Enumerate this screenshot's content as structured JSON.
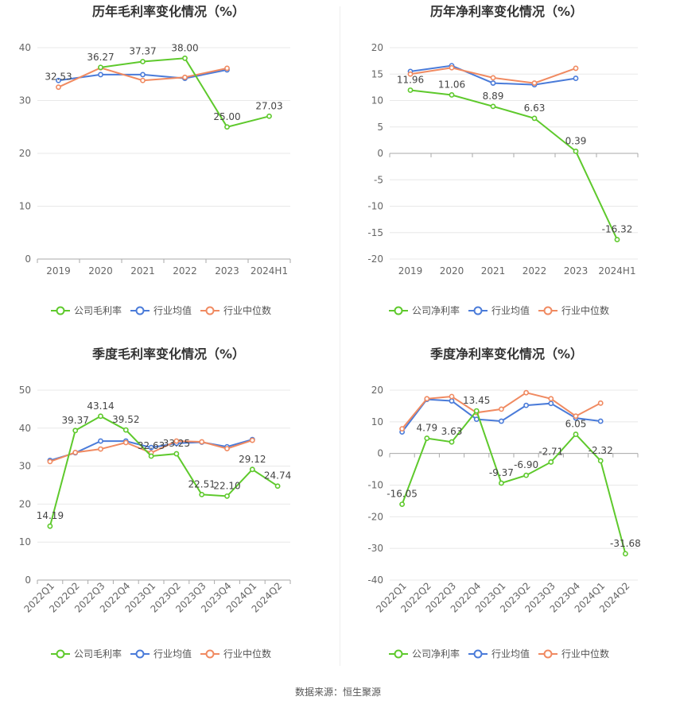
{
  "source_text": "数据来源：恒生聚源",
  "colors": {
    "company": "#5ec92c",
    "industry_avg": "#4a7bd9",
    "industry_median": "#f08a61",
    "grid": "#e8e8e8",
    "axis": "#aaaaaa",
    "text": "#666666",
    "title": "#333333"
  },
  "chart_data": [
    {
      "id": "annual-gross",
      "type": "line",
      "title": "历年毛利率变化情况（%）",
      "categories": [
        "2019",
        "2020",
        "2021",
        "2022",
        "2023",
        "2024H1"
      ],
      "ylim": [
        0,
        40
      ],
      "yticks": [
        0,
        10,
        20,
        30,
        40
      ],
      "grid": true,
      "legend_position": "bottom",
      "series": [
        {
          "name": "公司毛利率",
          "key": "company",
          "values": [
            null,
            36.27,
            37.37,
            38.0,
            25.0,
            27.03
          ],
          "labels": [
            null,
            "36.27",
            "37.37",
            "38.00",
            "25.00",
            "27.03"
          ]
        },
        {
          "name": "行业均值",
          "key": "industry_avg",
          "values": [
            33.8,
            34.9,
            34.9,
            34.2,
            35.8,
            null
          ]
        },
        {
          "name": "行业中位数",
          "key": "industry_median",
          "values": [
            32.53,
            36.2,
            33.8,
            34.4,
            36.1,
            null
          ],
          "labels": [
            "32.53",
            null,
            null,
            null,
            null,
            null
          ]
        }
      ]
    },
    {
      "id": "annual-net",
      "type": "line",
      "title": "历年净利率变化情况（%）",
      "categories": [
        "2019",
        "2020",
        "2021",
        "2022",
        "2023",
        "2024H1"
      ],
      "ylim": [
        -20,
        20
      ],
      "yticks": [
        -20,
        -15,
        -10,
        -5,
        0,
        5,
        10,
        15,
        20
      ],
      "grid": true,
      "legend_position": "bottom",
      "series": [
        {
          "name": "公司净利率",
          "key": "company",
          "values": [
            11.96,
            11.06,
            8.89,
            6.63,
            0.39,
            -16.32
          ],
          "labels": [
            "11.96",
            "11.06",
            "8.89",
            "6.63",
            "0.39",
            "-16.32"
          ]
        },
        {
          "name": "行业均值",
          "key": "industry_avg",
          "values": [
            15.5,
            16.6,
            13.3,
            13.0,
            14.2,
            null
          ]
        },
        {
          "name": "行业中位数",
          "key": "industry_median",
          "values": [
            15.0,
            16.2,
            14.3,
            13.3,
            16.1,
            null
          ]
        }
      ]
    },
    {
      "id": "quarterly-gross",
      "type": "line",
      "title": "季度毛利率变化情况（%）",
      "categories": [
        "2022Q1",
        "2022Q2",
        "2022Q3",
        "2022Q4",
        "2023Q1",
        "2023Q2",
        "2023Q3",
        "2023Q4",
        "2024Q1",
        "2024Q2"
      ],
      "ylim": [
        0,
        50
      ],
      "yticks": [
        0,
        10,
        20,
        30,
        40,
        50
      ],
      "grid": true,
      "legend_position": "bottom",
      "series": [
        {
          "name": "公司毛利率",
          "key": "company",
          "values": [
            14.19,
            39.37,
            43.14,
            39.52,
            32.63,
            33.25,
            22.51,
            22.1,
            29.12,
            24.74
          ],
          "labels": [
            "14.19",
            "39.37",
            "43.14",
            "39.52",
            "32.63",
            "33.25",
            "22.51",
            "22.10",
            "29.12",
            "24.74"
          ]
        },
        {
          "name": "行业均值",
          "key": "industry_avg",
          "values": [
            31.5,
            33.5,
            36.6,
            36.6,
            34.9,
            36.0,
            36.3,
            35.1,
            37.0,
            null
          ]
        },
        {
          "name": "行业中位数",
          "key": "industry_median",
          "values": [
            31.2,
            33.6,
            34.5,
            36.2,
            33.5,
            36.6,
            36.4,
            34.6,
            36.8,
            null
          ]
        }
      ]
    },
    {
      "id": "quarterly-net",
      "type": "line",
      "title": "季度净利率变化情况（%）",
      "categories": [
        "2022Q1",
        "2022Q2",
        "2022Q3",
        "2022Q4",
        "2023Q1",
        "2023Q2",
        "2023Q3",
        "2023Q4",
        "2024Q1",
        "2024Q2"
      ],
      "ylim": [
        -40,
        20
      ],
      "yticks": [
        -40,
        -30,
        -20,
        -10,
        0,
        10,
        20
      ],
      "grid": true,
      "legend_position": "bottom",
      "series": [
        {
          "name": "公司净利率",
          "key": "company",
          "values": [
            -16.05,
            4.79,
            3.63,
            13.45,
            -9.37,
            -6.9,
            -2.71,
            6.05,
            -2.32,
            -31.68
          ],
          "labels": [
            "-16.05",
            "4.79",
            "3.63",
            "13.45",
            "-9.37",
            "-6.90",
            "-2.71",
            "6.05",
            "-2.32",
            "-31.68"
          ]
        },
        {
          "name": "行业均值",
          "key": "industry_avg",
          "values": [
            6.8,
            17.1,
            16.6,
            10.8,
            10.2,
            15.2,
            15.8,
            11.2,
            10.2,
            null
          ]
        },
        {
          "name": "行业中位数",
          "key": "industry_median",
          "values": [
            7.8,
            17.3,
            18.0,
            12.9,
            14.0,
            19.2,
            17.3,
            11.8,
            15.9,
            null
          ]
        }
      ]
    }
  ]
}
